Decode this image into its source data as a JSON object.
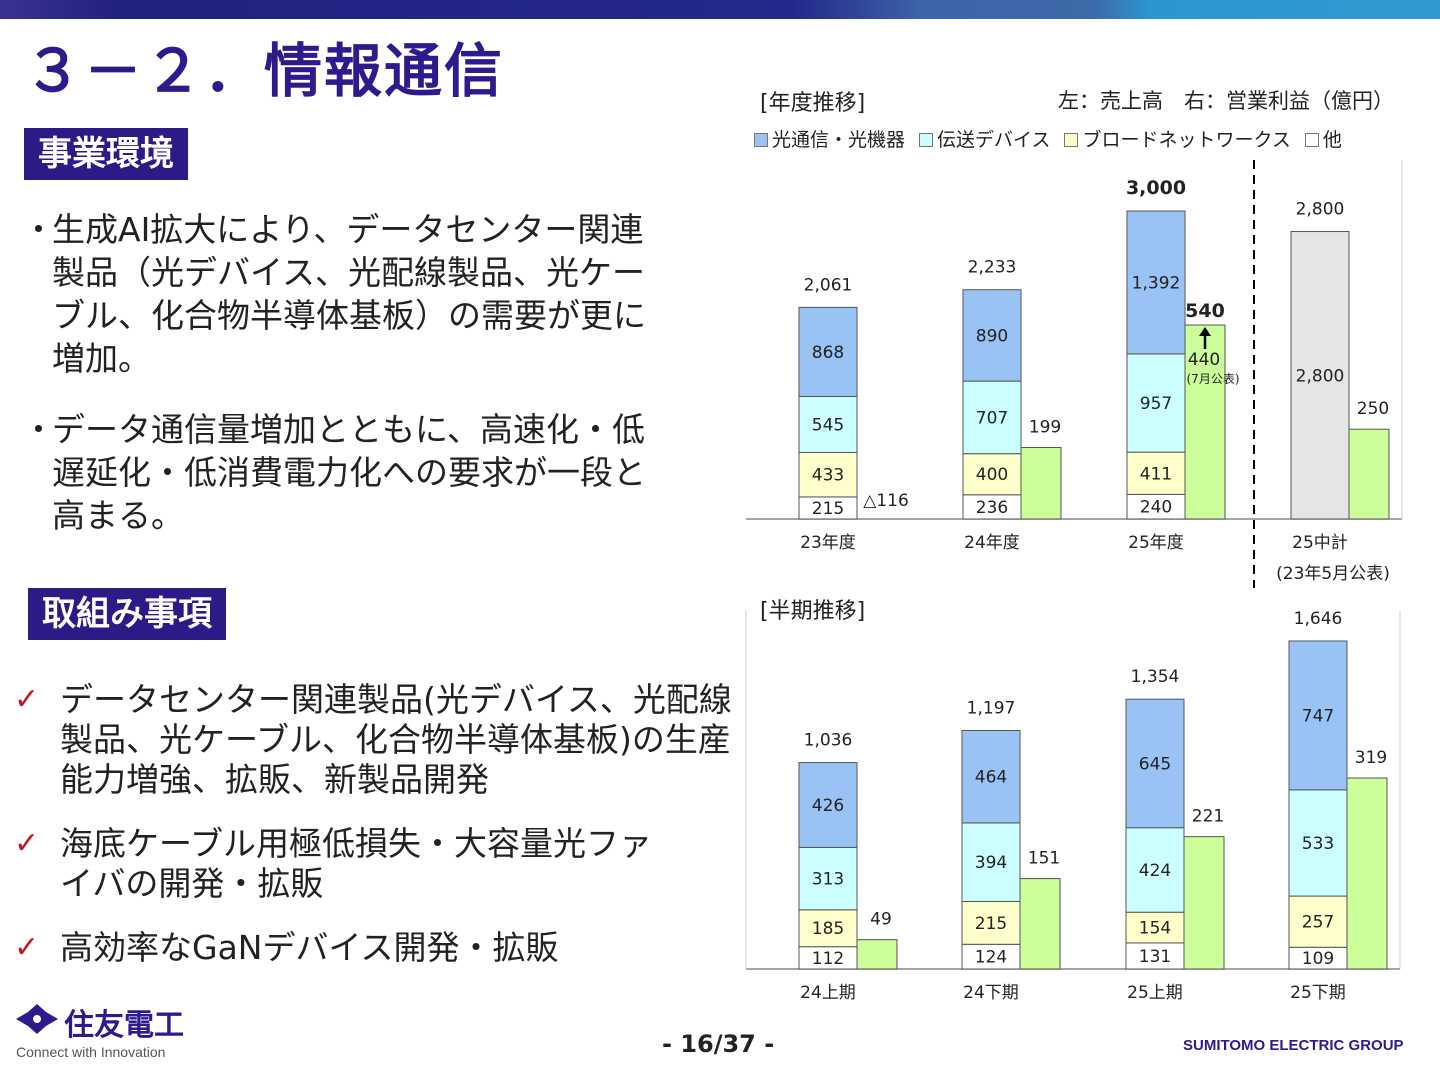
{
  "title": "３－２．情報通信",
  "sections": {
    "environment": "事業環境",
    "initiatives": "取組み事項"
  },
  "environment_bullets": [
    "生成AI拡大により、データセンター関連製品（光デバイス、光配線製品、光ケーブル、化合物半導体基板）の需要が更に増加。",
    "データ通信量増加とともに、高速化・低遅延化・低消費電力化への要求が一段と高まる。"
  ],
  "bullet_mark": "・",
  "check_mark": "✓",
  "initiative_items": [
    "データセンター関連製品(光デバイス、光配線製品、光ケーブル、化合物半導体基板)の生産能力増強、拡販、新製品開発",
    "海底ケーブル用極低損失・大容量光ファイバの開発・拡販",
    "高効率なGaNデバイス開発・拡販"
  ],
  "footer": {
    "logo_text": "住友電工",
    "tagline": "Connect with Innovation",
    "page": "- 16/37 -",
    "group": "SUMITOMO ELECTRIC GROUP"
  },
  "colors": {
    "optical": "#99c3f5",
    "transmission": "#ccffff",
    "broadnet": "#ffffcc",
    "other": "#ffffff",
    "profit": "#ccff99",
    "plan": "#e5e5e5",
    "accent": "#2b1b8c"
  },
  "legend": [
    "光通信・光機器",
    "伝送デバイス",
    "ブロードネットワークス",
    "他"
  ],
  "chart_data": [
    {
      "type": "bar",
      "title": "[年度推移]",
      "note": "左：売上高　右：営業利益（億円）",
      "categories": [
        "23年度",
        "24年度",
        "25年度",
        "25中計"
      ],
      "category_sub": [
        "",
        "",
        "",
        "(23年5月公表)"
      ],
      "series": [
        {
          "name": "他",
          "values": [
            215,
            236,
            240,
            null
          ]
        },
        {
          "name": "ブロードネットワークス",
          "values": [
            433,
            400,
            411,
            null
          ]
        },
        {
          "name": "伝送デバイス",
          "values": [
            545,
            707,
            957,
            null
          ]
        },
        {
          "name": "光通信・光機器",
          "values": [
            868,
            890,
            1392,
            null
          ]
        }
      ],
      "plan_sales": [
        null,
        null,
        null,
        2800
      ],
      "sales_totals": [
        "2,061",
        "2,233",
        "3,000",
        "2,800"
      ],
      "operating_profit": [
        -116,
        199,
        540,
        250
      ],
      "profit_labels": [
        "△116",
        "199",
        "540",
        "250"
      ],
      "profit_note": {
        "value": "440",
        "sub": "(7月公表)"
      },
      "stacked": true
    },
    {
      "type": "bar",
      "title": "[半期推移]",
      "categories": [
        "24上期",
        "24下期",
        "25上期",
        "25下期"
      ],
      "series": [
        {
          "name": "他",
          "values": [
            112,
            124,
            131,
            109
          ]
        },
        {
          "name": "ブロードネットワークス",
          "values": [
            185,
            215,
            154,
            257
          ]
        },
        {
          "name": "伝送デバイス",
          "values": [
            313,
            394,
            424,
            533
          ]
        },
        {
          "name": "光通信・光機器",
          "values": [
            426,
            464,
            645,
            747
          ]
        }
      ],
      "sales_totals": [
        "1,036",
        "1,197",
        "1,354",
        "1,646"
      ],
      "operating_profit": [
        49,
        151,
        221,
        319
      ],
      "profit_labels": [
        "49",
        "151",
        "221",
        "319"
      ],
      "stacked": true
    }
  ]
}
